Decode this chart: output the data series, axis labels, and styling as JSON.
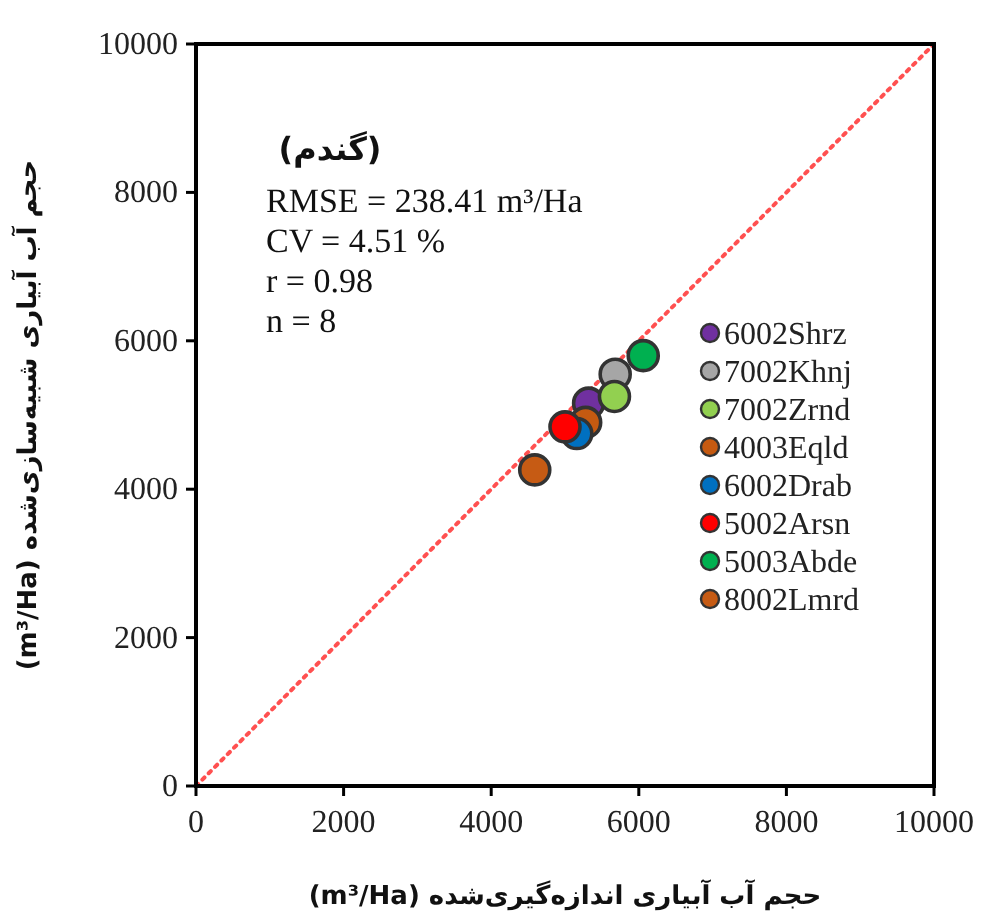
{
  "chart_data": {
    "type": "scatter",
    "xlabel": "حجم آب آبیاری اندازه‌گیری‌شده (m³/Ha)",
    "ylabel": "حجم آب آبیاری شبیه‌سازی‌شده (m³/Ha)",
    "annotations": [
      "(گندم)",
      "RMSE = 238.41 m³/Ha",
      "CV = 4.51 %",
      "r = 0.98",
      "n = 8"
    ],
    "xlim": [
      0,
      10000
    ],
    "ylim": [
      0,
      10000
    ],
    "xticks": [
      0,
      2000,
      4000,
      6000,
      8000,
      10000
    ],
    "yticks": [
      0,
      2000,
      4000,
      6000,
      8000,
      10000
    ],
    "grid": false,
    "legend": "right",
    "marker": "circle",
    "series": [
      {
        "type": "line",
        "color": "#ff5050",
        "line_style": "dotted",
        "marker": "none",
        "x": [
          0,
          10000
        ],
        "values": [
          0,
          10000
        ]
      },
      {
        "name": "6002Shrz",
        "color": "#7030a0",
        "x": [
          5320
        ],
        "values": [
          5160
        ]
      },
      {
        "name": "7002Khnj",
        "color": "#a6a6a6",
        "x": [
          5680
        ],
        "values": [
          5550
        ]
      },
      {
        "name": "7002Zrnd",
        "color": "#92d050",
        "x": [
          5670
        ],
        "values": [
          5250
        ]
      },
      {
        "name": "4003Eqld",
        "color": "#c55a11",
        "x": [
          5280
        ],
        "values": [
          4900
        ]
      },
      {
        "name": "6002Drab",
        "color": "#0070c0",
        "x": [
          5160
        ],
        "values": [
          4750
        ]
      },
      {
        "name": "5002Arsn",
        "color": "#ff0000",
        "x": [
          5000
        ],
        "values": [
          4840
        ]
      },
      {
        "name": "5003Abde",
        "color": "#00b050",
        "x": [
          6060
        ],
        "values": [
          5800
        ]
      },
      {
        "name": "8002Lmrd",
        "color": "#c65b14",
        "x": [
          4590
        ],
        "values": [
          4260
        ]
      }
    ]
  }
}
